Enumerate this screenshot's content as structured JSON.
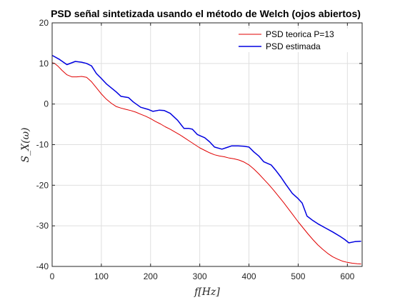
{
  "chart_data": {
    "type": "line",
    "title": "PSD señal sintetizada usando el método de Welch (ojos abiertos)",
    "xlabel": "f[Hz]",
    "ylabel": "S_X(ω)",
    "xlim": [
      0,
      630
    ],
    "ylim": [
      -40,
      20
    ],
    "xticks": [
      0,
      100,
      200,
      300,
      400,
      500,
      600
    ],
    "yticks": [
      -40,
      -30,
      -20,
      -10,
      0,
      10,
      20
    ],
    "grid": true,
    "legend_position": "top-right",
    "series": [
      {
        "name": "PSD teorica P=13",
        "color": "#e00000",
        "points": [
          [
            0,
            10.2
          ],
          [
            5,
            10.0
          ],
          [
            12,
            9.3
          ],
          [
            20,
            8.3
          ],
          [
            30,
            7.2
          ],
          [
            40,
            6.7
          ],
          [
            50,
            6.7
          ],
          [
            60,
            6.8
          ],
          [
            70,
            6.6
          ],
          [
            80,
            5.5
          ],
          [
            90,
            4.0
          ],
          [
            100,
            2.5
          ],
          [
            110,
            1.2
          ],
          [
            120,
            0.2
          ],
          [
            130,
            -0.6
          ],
          [
            140,
            -1.0
          ],
          [
            150,
            -1.3
          ],
          [
            160,
            -1.6
          ],
          [
            170,
            -2.0
          ],
          [
            180,
            -2.5
          ],
          [
            190,
            -3.0
          ],
          [
            200,
            -3.6
          ],
          [
            210,
            -4.3
          ],
          [
            220,
            -4.9
          ],
          [
            230,
            -5.6
          ],
          [
            240,
            -6.2
          ],
          [
            250,
            -6.9
          ],
          [
            260,
            -7.6
          ],
          [
            270,
            -8.4
          ],
          [
            280,
            -9.2
          ],
          [
            290,
            -10.0
          ],
          [
            300,
            -10.8
          ],
          [
            310,
            -11.4
          ],
          [
            320,
            -12.0
          ],
          [
            330,
            -12.5
          ],
          [
            340,
            -12.8
          ],
          [
            350,
            -13.0
          ],
          [
            360,
            -13.3
          ],
          [
            370,
            -13.5
          ],
          [
            380,
            -13.8
          ],
          [
            390,
            -14.3
          ],
          [
            400,
            -15.0
          ],
          [
            410,
            -16.0
          ],
          [
            420,
            -17.2
          ],
          [
            430,
            -18.5
          ],
          [
            440,
            -19.8
          ],
          [
            450,
            -21.2
          ],
          [
            460,
            -22.7
          ],
          [
            470,
            -24.2
          ],
          [
            480,
            -25.8
          ],
          [
            490,
            -27.4
          ],
          [
            500,
            -29.0
          ],
          [
            510,
            -30.5
          ],
          [
            520,
            -32.0
          ],
          [
            530,
            -33.4
          ],
          [
            540,
            -34.7
          ],
          [
            550,
            -35.8
          ],
          [
            560,
            -36.8
          ],
          [
            570,
            -37.6
          ],
          [
            580,
            -38.2
          ],
          [
            590,
            -38.7
          ],
          [
            600,
            -39.0
          ],
          [
            610,
            -39.2
          ],
          [
            620,
            -39.35
          ],
          [
            628,
            -39.4
          ]
        ]
      },
      {
        "name": "PSD estimada",
        "color": "#0000e0",
        "points": [
          [
            0,
            12.0
          ],
          [
            15,
            11.0
          ],
          [
            30,
            9.7
          ],
          [
            47,
            10.5
          ],
          [
            60,
            10.3
          ],
          [
            70,
            10.0
          ],
          [
            80,
            9.4
          ],
          [
            90,
            7.5
          ],
          [
            100,
            6.3
          ],
          [
            110,
            5.0
          ],
          [
            120,
            4.0
          ],
          [
            130,
            3.0
          ],
          [
            140,
            1.9
          ],
          [
            155,
            1.6
          ],
          [
            165,
            0.5
          ],
          [
            180,
            -0.8
          ],
          [
            195,
            -1.3
          ],
          [
            205,
            -1.8
          ],
          [
            218,
            -1.5
          ],
          [
            228,
            -1.6
          ],
          [
            240,
            -2.3
          ],
          [
            255,
            -4.0
          ],
          [
            268,
            -6.0
          ],
          [
            278,
            -6.0
          ],
          [
            285,
            -6.2
          ],
          [
            295,
            -7.5
          ],
          [
            310,
            -8.3
          ],
          [
            320,
            -9.3
          ],
          [
            330,
            -10.6
          ],
          [
            345,
            -11.1
          ],
          [
            355,
            -10.7
          ],
          [
            365,
            -10.3
          ],
          [
            378,
            -10.3
          ],
          [
            390,
            -10.4
          ],
          [
            400,
            -10.6
          ],
          [
            410,
            -11.8
          ],
          [
            420,
            -12.8
          ],
          [
            430,
            -14.2
          ],
          [
            445,
            -15.0
          ],
          [
            455,
            -16.4
          ],
          [
            465,
            -18.0
          ],
          [
            475,
            -19.8
          ],
          [
            488,
            -22.0
          ],
          [
            500,
            -23.3
          ],
          [
            508,
            -24.4
          ],
          [
            518,
            -27.6
          ],
          [
            530,
            -28.7
          ],
          [
            540,
            -29.5
          ],
          [
            555,
            -30.5
          ],
          [
            570,
            -31.5
          ],
          [
            585,
            -32.6
          ],
          [
            595,
            -33.4
          ],
          [
            603,
            -34.2
          ],
          [
            615,
            -33.9
          ],
          [
            628,
            -33.8
          ]
        ]
      }
    ]
  }
}
